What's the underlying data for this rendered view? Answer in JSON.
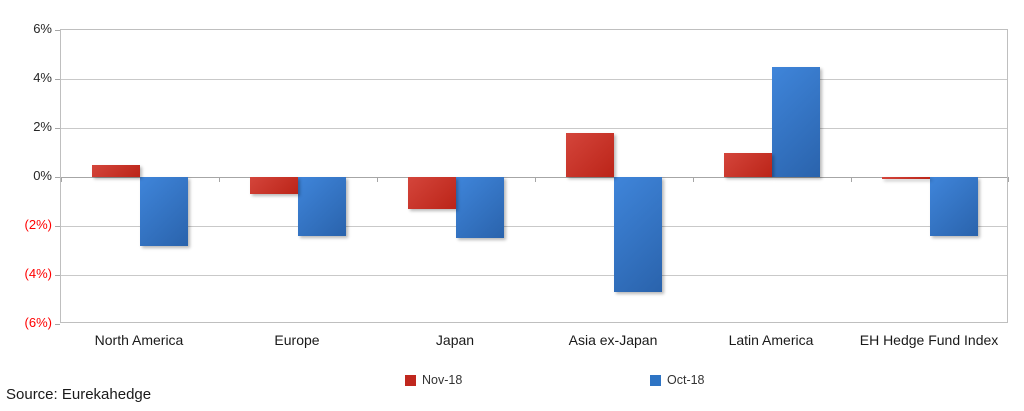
{
  "chart_data": {
    "type": "bar",
    "title": "",
    "xlabel": "",
    "ylabel": "",
    "categories": [
      "North America",
      "Europe",
      "Japan",
      "Asia ex-Japan",
      "Latin America",
      "EH Hedge Fund Index"
    ],
    "series": [
      {
        "name": "Nov-18",
        "color_top": "#d4453b",
        "color_bottom": "#bb2418",
        "legend_color": "#c0281e",
        "values": [
          0.5,
          -0.7,
          -1.3,
          1.8,
          1.0,
          -0.1
        ]
      },
      {
        "name": "Oct-18",
        "color_top": "#3f85da",
        "color_bottom": "#2a63ac",
        "legend_color": "#2e74c4",
        "values": [
          -2.8,
          -2.4,
          -2.5,
          -4.7,
          4.5,
          -2.4
        ]
      }
    ],
    "ylim": [
      -6,
      6
    ],
    "ytick_step": 2,
    "yticks": [
      {
        "label": "6%",
        "value": 6
      },
      {
        "label": "4%",
        "value": 4
      },
      {
        "label": "2%",
        "value": 2
      },
      {
        "label": "0%",
        "value": 0
      },
      {
        "label": "(2%)",
        "value": -2
      },
      {
        "label": "(4%)",
        "value": -4
      },
      {
        "label": "(6%)",
        "value": -6
      }
    ],
    "ytick_positive_color": "#262626",
    "ytick_negative_color": "#ff0000",
    "grid": true,
    "grid_color": "#c9c9c9",
    "axis_color": "#a6a6a6",
    "plot_border_color": "#bfbfbf",
    "legend_position": "bottom"
  },
  "source": {
    "text": "Source: Eurekahedge"
  }
}
